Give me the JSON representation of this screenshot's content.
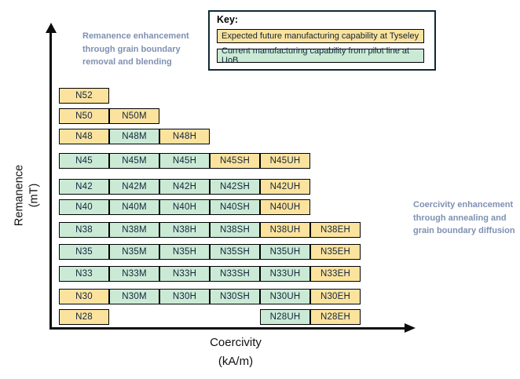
{
  "figure": {
    "axes": {
      "y_label_lines": [
        "Remanence",
        "(mT)"
      ],
      "x_label_lines": [
        "Coercivity",
        "(kA/m)"
      ]
    },
    "annotations": {
      "left_lines": [
        "Remanence enhancement",
        "through grain boundary",
        "removal and blending"
      ],
      "right_lines": [
        "Coercivity enhancement",
        "through annealing and",
        "grain boundary diffusion"
      ],
      "text_color": "#7E90B2"
    },
    "key": {
      "title": "Key:",
      "entries": [
        {
          "label": "Expected future manufacturing capability at Tyseley",
          "status": "future",
          "color": "#FBE39E"
        },
        {
          "label": "Current manufacturing capability from pilot line at UoB",
          "status": "current",
          "color": "#CAEAD5"
        }
      ]
    },
    "colors": {
      "future_fill": "#FBE39E",
      "current_fill": "#CAEAD5",
      "cell_border": "#000000",
      "key_border": "#0E2A33",
      "axis": "#0D0D0D",
      "annotation_text": "#7E90B2"
    }
  },
  "chart_data": {
    "type": "heatmap",
    "title": "",
    "xlabel": "Coercivity (kA/m)",
    "ylabel": "Remanence (mT)",
    "columns": [
      "",
      "M",
      "H",
      "SH",
      "UH",
      "EH"
    ],
    "legend": [
      {
        "status": "future",
        "color": "#FBE39E",
        "label": "Expected future manufacturing capability at Tyseley"
      },
      {
        "status": "current",
        "color": "#CAEAD5",
        "label": "Current manufacturing capability from pilot line at UoB"
      }
    ],
    "rows": [
      {
        "grade": "N52",
        "cells": [
          {
            "label": "N52",
            "col": 0,
            "status": "future"
          }
        ]
      },
      {
        "grade": "N50",
        "cells": [
          {
            "label": "N50",
            "col": 0,
            "status": "future"
          },
          {
            "label": "N50M",
            "col": 1,
            "status": "future"
          }
        ]
      },
      {
        "grade": "N48",
        "cells": [
          {
            "label": "N48",
            "col": 0,
            "status": "future"
          },
          {
            "label": "N48M",
            "col": 1,
            "status": "current"
          },
          {
            "label": "N48H",
            "col": 2,
            "status": "future"
          }
        ]
      },
      {
        "grade": "N45",
        "cells": [
          {
            "label": "N45",
            "col": 0,
            "status": "current"
          },
          {
            "label": "N45M",
            "col": 1,
            "status": "current"
          },
          {
            "label": "N45H",
            "col": 2,
            "status": "current"
          },
          {
            "label": "N45SH",
            "col": 3,
            "status": "future"
          },
          {
            "label": "N45UH",
            "col": 4,
            "status": "future"
          }
        ]
      },
      {
        "grade": "N42",
        "cells": [
          {
            "label": "N42",
            "col": 0,
            "status": "current"
          },
          {
            "label": "N42M",
            "col": 1,
            "status": "current"
          },
          {
            "label": "N42H",
            "col": 2,
            "status": "current"
          },
          {
            "label": "N42SH",
            "col": 3,
            "status": "current"
          },
          {
            "label": "N42UH",
            "col": 4,
            "status": "future"
          }
        ]
      },
      {
        "grade": "N40",
        "cells": [
          {
            "label": "N40",
            "col": 0,
            "status": "current"
          },
          {
            "label": "N40M",
            "col": 1,
            "status": "current"
          },
          {
            "label": "N40H",
            "col": 2,
            "status": "current"
          },
          {
            "label": "N40SH",
            "col": 3,
            "status": "current"
          },
          {
            "label": "N40UH",
            "col": 4,
            "status": "future"
          }
        ]
      },
      {
        "grade": "N38",
        "cells": [
          {
            "label": "N38",
            "col": 0,
            "status": "current"
          },
          {
            "label": "N38M",
            "col": 1,
            "status": "current"
          },
          {
            "label": "N38H",
            "col": 2,
            "status": "current"
          },
          {
            "label": "N38SH",
            "col": 3,
            "status": "current"
          },
          {
            "label": "N38UH",
            "col": 4,
            "status": "future"
          },
          {
            "label": "N38EH",
            "col": 5,
            "status": "future"
          }
        ]
      },
      {
        "grade": "N35",
        "cells": [
          {
            "label": "N35",
            "col": 0,
            "status": "current"
          },
          {
            "label": "N35M",
            "col": 1,
            "status": "current"
          },
          {
            "label": "N35H",
            "col": 2,
            "status": "current"
          },
          {
            "label": "N35SH",
            "col": 3,
            "status": "current"
          },
          {
            "label": "N35UH",
            "col": 4,
            "status": "current"
          },
          {
            "label": "N35EH",
            "col": 5,
            "status": "future"
          }
        ]
      },
      {
        "grade": "N33",
        "cells": [
          {
            "label": "N33",
            "col": 0,
            "status": "current"
          },
          {
            "label": "N33M",
            "col": 1,
            "status": "current"
          },
          {
            "label": "N33H",
            "col": 2,
            "status": "current"
          },
          {
            "label": "N33SH",
            "col": 3,
            "status": "current"
          },
          {
            "label": "N33UH",
            "col": 4,
            "status": "current"
          },
          {
            "label": "N33EH",
            "col": 5,
            "status": "future"
          }
        ]
      },
      {
        "grade": "N30",
        "cells": [
          {
            "label": "N30",
            "col": 0,
            "status": "future"
          },
          {
            "label": "N30M",
            "col": 1,
            "status": "current"
          },
          {
            "label": "N30H",
            "col": 2,
            "status": "current"
          },
          {
            "label": "N30SH",
            "col": 3,
            "status": "current"
          },
          {
            "label": "N30UH",
            "col": 4,
            "status": "current"
          },
          {
            "label": "N30EH",
            "col": 5,
            "status": "future"
          }
        ]
      },
      {
        "grade": "N28",
        "cells": [
          {
            "label": "N28",
            "col": 0,
            "status": "future"
          },
          {
            "label": "N28UH",
            "col": 4,
            "status": "current"
          },
          {
            "label": "N28EH",
            "col": 5,
            "status": "future"
          }
        ]
      }
    ]
  }
}
